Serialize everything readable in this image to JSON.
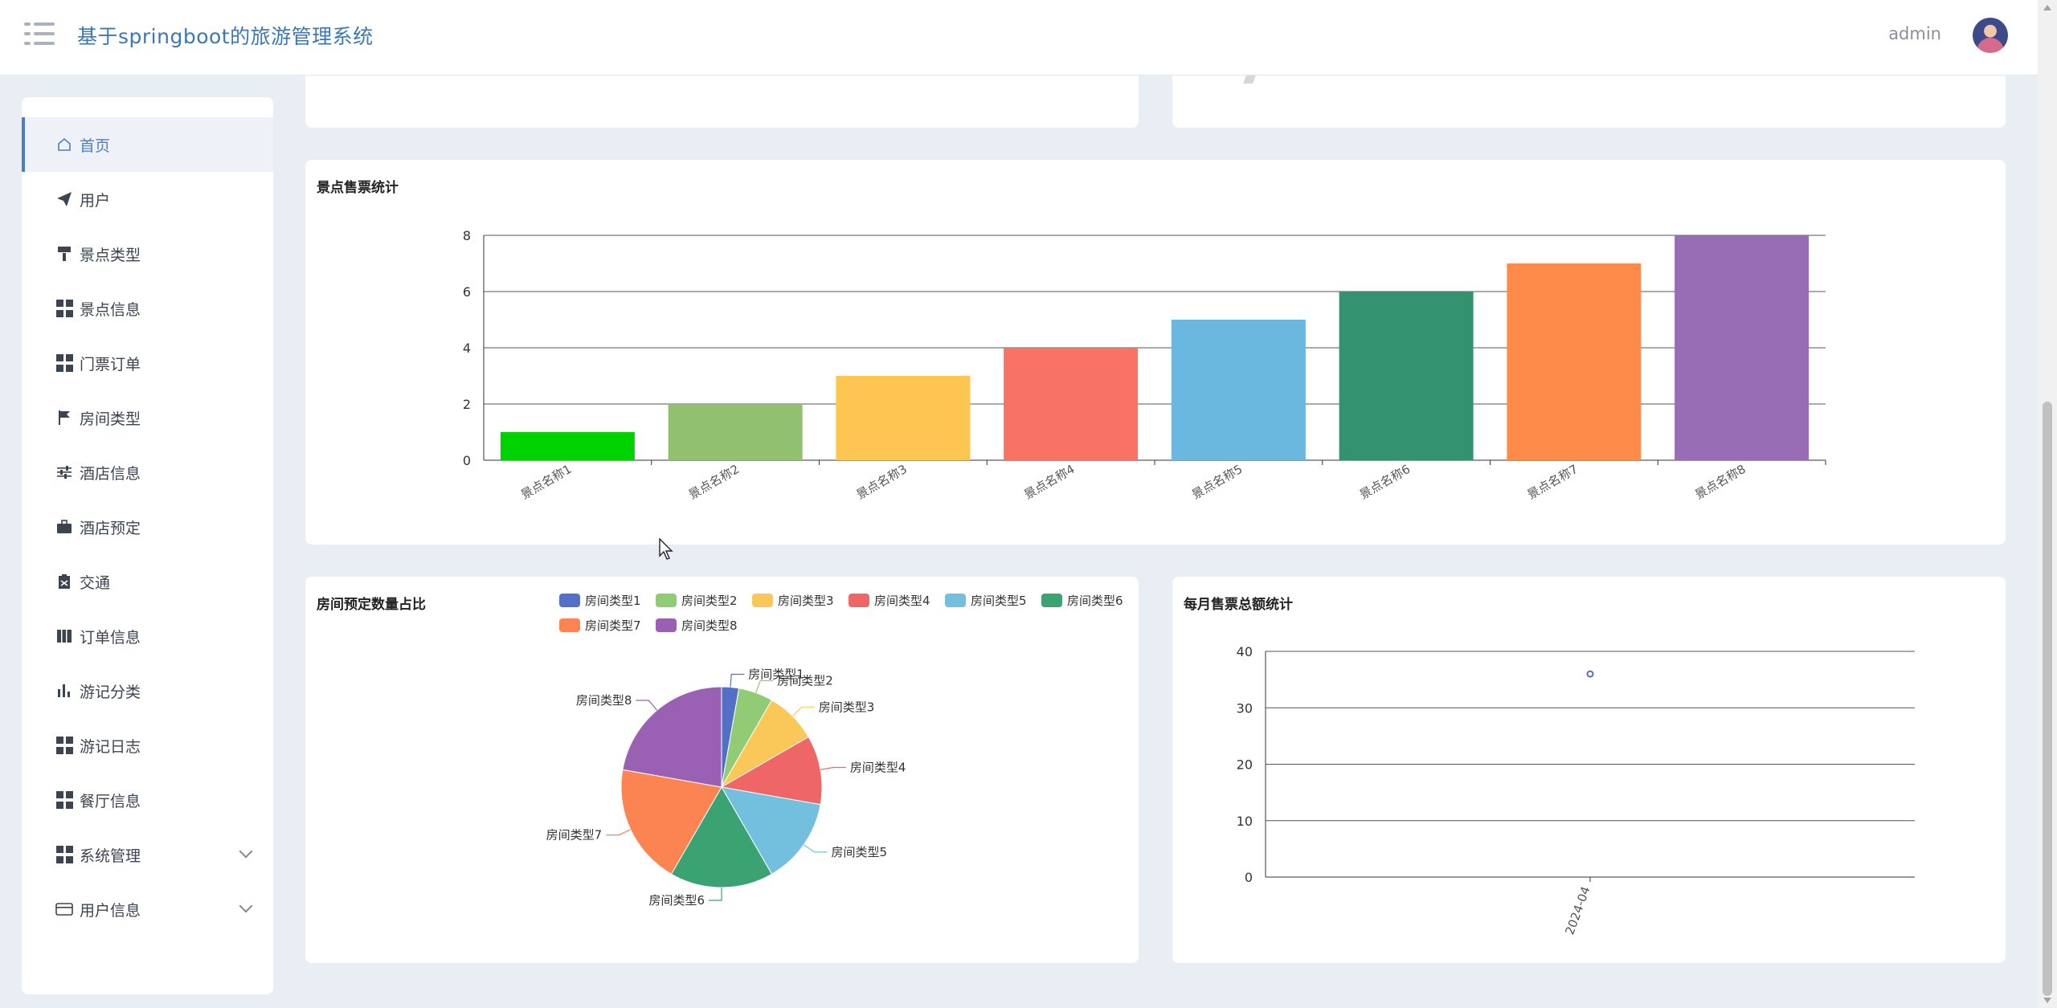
{
  "header": {
    "title": "基于springboot的旅游管理系统",
    "username": "admin"
  },
  "sidebar": {
    "items": [
      {
        "label": "首页",
        "icon": "home-icon",
        "active": true
      },
      {
        "label": "用户",
        "icon": "paper-plane-icon"
      },
      {
        "label": "景点类型",
        "icon": "paint-roller-icon"
      },
      {
        "label": "景点信息",
        "icon": "grid-icon"
      },
      {
        "label": "门票订单",
        "icon": "grid-icon"
      },
      {
        "label": "房间类型",
        "icon": "flag-icon"
      },
      {
        "label": "酒店信息",
        "icon": "sliders-icon"
      },
      {
        "label": "酒店预定",
        "icon": "briefcase-icon"
      },
      {
        "label": "交通",
        "icon": "clipboard-icon"
      },
      {
        "label": "订单信息",
        "icon": "book-icon"
      },
      {
        "label": "游记分类",
        "icon": "bar-chart-icon"
      },
      {
        "label": "游记日志",
        "icon": "grid-icon"
      },
      {
        "label": "餐厅信息",
        "icon": "grid-icon"
      },
      {
        "label": "系统管理",
        "icon": "grid-icon",
        "expandable": true
      },
      {
        "label": "用户信息",
        "icon": "wallet-icon",
        "expandable": true
      }
    ]
  },
  "chart_data": [
    {
      "type": "bar",
      "title": "景点售票统计",
      "categories": [
        "景点名称1",
        "景点名称2",
        "景点名称3",
        "景点名称4",
        "景点名称5",
        "景点名称6",
        "景点名称7",
        "景点名称8"
      ],
      "values": [
        1,
        2,
        3,
        4,
        5,
        6,
        7,
        8
      ],
      "colors": [
        "#00d200",
        "#91c06e",
        "#fdc650",
        "#f87366",
        "#6ab7df",
        "#339371",
        "#fe8b4a",
        "#996cb6"
      ],
      "ylim": [
        0,
        8
      ],
      "yticks": [
        0,
        2,
        4,
        6,
        8
      ],
      "grid": true
    },
    {
      "type": "pie",
      "title": "房间预定数量占比",
      "labels": [
        "房间类型1",
        "房间类型2",
        "房间类型3",
        "房间类型4",
        "房间类型5",
        "房间类型6",
        "房间类型7",
        "房间类型8"
      ],
      "values": [
        1,
        2,
        3,
        4,
        5,
        6,
        7,
        8
      ],
      "colors": [
        "#5470c6",
        "#91cc75",
        "#fac858",
        "#ee6666",
        "#73c0de",
        "#3ba272",
        "#fc8452",
        "#9a60b4"
      ],
      "legend": "top-right"
    },
    {
      "type": "line",
      "title": "每月售票总额统计",
      "x": [
        "2024-04"
      ],
      "values": [
        36
      ],
      "ylim": [
        0,
        40
      ],
      "yticks": [
        0,
        10,
        20,
        30,
        40
      ],
      "color": "#5470c6",
      "grid": true
    }
  ]
}
